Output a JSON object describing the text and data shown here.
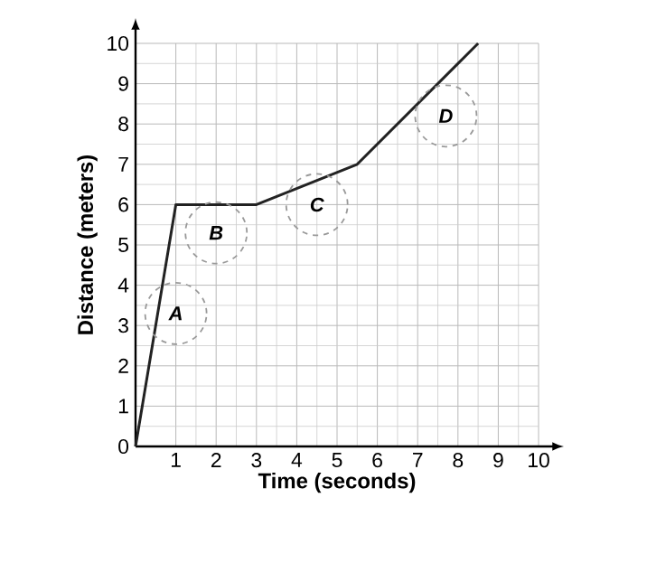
{
  "chart_data": {
    "type": "line",
    "xlabel": "Time (seconds)",
    "ylabel": "Distance (meters)",
    "x": [
      0,
      1,
      3,
      5.5,
      8.5
    ],
    "values": [
      0,
      6,
      6,
      7,
      10
    ],
    "color": "#222222",
    "xlim": [
      0,
      10
    ],
    "ylim": [
      0,
      10
    ],
    "xticks": [
      1,
      2,
      3,
      4,
      5,
      6,
      7,
      8,
      9,
      10
    ],
    "yticks": [
      0,
      1,
      2,
      3,
      4,
      5,
      6,
      7,
      8,
      9,
      10
    ],
    "grid": true,
    "marker": "none",
    "line_style": "solid",
    "annotations": [
      {
        "text": "A",
        "x": 1,
        "y": 3.3
      },
      {
        "text": "B",
        "x": 2,
        "y": 5.3
      },
      {
        "text": "C",
        "x": 4.5,
        "y": 6
      },
      {
        "text": "D",
        "x": 7.7,
        "y": 8.2
      }
    ]
  }
}
